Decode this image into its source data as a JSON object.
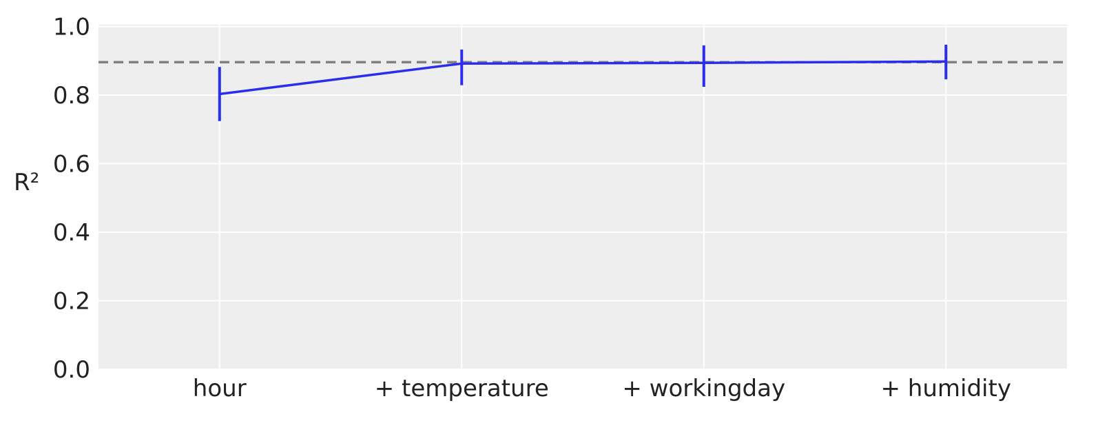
{
  "chart_data": {
    "type": "line",
    "title": "",
    "xlabel": "",
    "ylabel": "R²",
    "categories": [
      "hour",
      "+ temperature",
      "+ workingday",
      "+ humidity"
    ],
    "series": [
      {
        "values": [
          0.803,
          0.892,
          0.894,
          0.898
        ],
        "error_low": [
          0.724,
          0.829,
          0.824,
          0.846
        ],
        "error_high": [
          0.882,
          0.933,
          0.945,
          0.947
        ]
      }
    ],
    "reference_line": {
      "y": 0.896,
      "style": "dashed"
    },
    "ylim": [
      0,
      1
    ],
    "yticks": [
      "0.0",
      "0.2",
      "0.4",
      "0.6",
      "0.8",
      "1.0"
    ],
    "grid": true,
    "colors": {
      "series": "#2a2eec",
      "reference": "#808080",
      "background": "#eeeeee",
      "grid": "#ffffff"
    }
  }
}
